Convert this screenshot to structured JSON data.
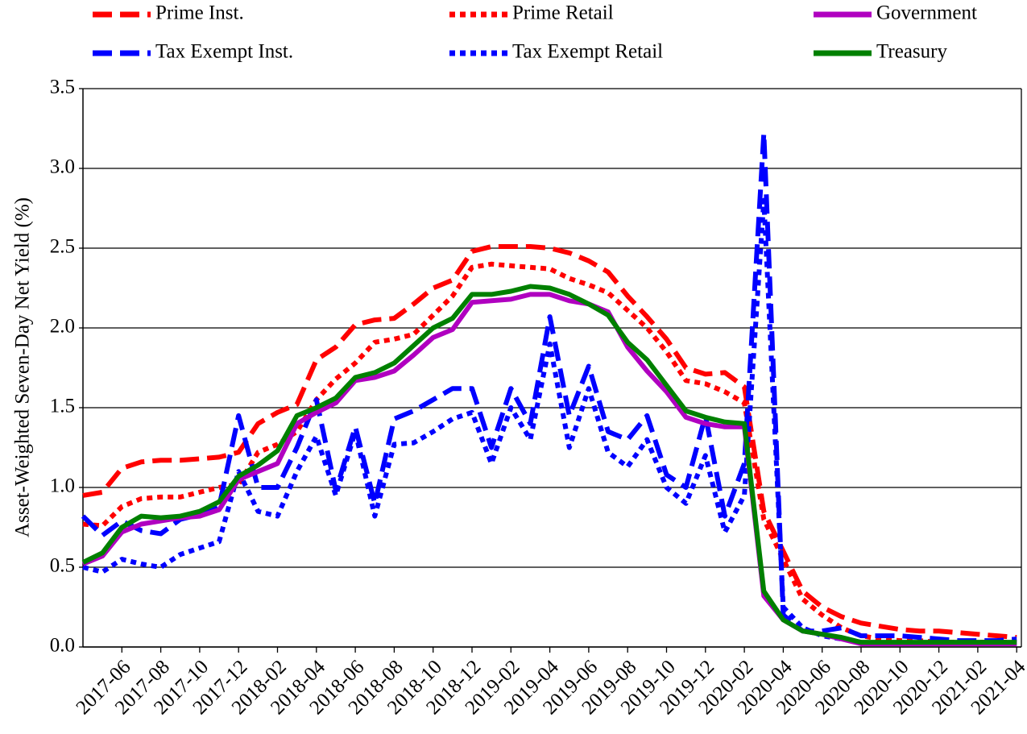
{
  "chart_data": {
    "type": "line",
    "y_label": "Asset-Weighted Seven-Day Net Yield (%)",
    "categories": [
      null,
      null,
      "2017-06",
      null,
      "2017-08",
      null,
      "2017-10",
      null,
      "2017-12",
      null,
      "2018-02",
      null,
      "2018-04",
      null,
      "2018-06",
      null,
      "2018-08",
      null,
      "2018-10",
      null,
      "2018-12",
      null,
      "2019-02",
      null,
      "2019-04",
      null,
      "2019-06",
      null,
      "2019-08",
      null,
      "2019-10",
      null,
      "2019-12",
      null,
      "2020-02",
      null,
      "2020-04",
      null,
      "2020-06",
      null,
      "2020-08",
      null,
      "2020-10",
      null,
      "2020-12",
      null,
      "2021-02",
      null,
      "2021-04"
    ],
    "ylim": [
      0,
      3.5
    ],
    "yticks": [
      {
        "value": 0,
        "label": "0.0"
      },
      0.5,
      {
        "value": 1,
        "label": "1.0"
      },
      1.5,
      {
        "value": 2,
        "label": "2.0"
      },
      2.5,
      {
        "value": 3,
        "label": "3.0"
      },
      3.5
    ],
    "grid": true,
    "series": [
      {
        "name": "Prime Inst.",
        "color": "#ff0000",
        "style": "dashed",
        "values": [
          0.95,
          0.97,
          1.12,
          1.16,
          1.17,
          1.17,
          1.18,
          1.19,
          1.22,
          1.4,
          1.47,
          1.52,
          1.8,
          1.88,
          2.02,
          2.05,
          2.06,
          2.15,
          2.25,
          2.3,
          2.48,
          2.51,
          2.51,
          2.51,
          2.5,
          2.47,
          2.42,
          2.35,
          2.2,
          2.07,
          1.93,
          1.75,
          1.71,
          1.72,
          1.63,
          0.85,
          0.6,
          0.35,
          0.25,
          0.19,
          0.15,
          0.13,
          0.11,
          0.1,
          0.1,
          0.09,
          0.08,
          0.07,
          0.06
        ]
      },
      {
        "name": "Prime Retail",
        "color": "#ff0000",
        "style": "dotted",
        "values": [
          0.77,
          0.76,
          0.88,
          0.93,
          0.94,
          0.94,
          0.97,
          1.0,
          1.02,
          1.22,
          1.27,
          1.35,
          1.55,
          1.68,
          1.78,
          1.91,
          1.93,
          1.96,
          2.08,
          2.2,
          2.38,
          2.4,
          2.39,
          2.38,
          2.37,
          2.31,
          2.27,
          2.22,
          2.11,
          2.0,
          1.85,
          1.67,
          1.65,
          1.6,
          1.53,
          0.8,
          0.55,
          0.3,
          0.2,
          0.12,
          0.07,
          0.05,
          0.04,
          0.04,
          0.03,
          0.03,
          0.03,
          0.03,
          0.03
        ]
      },
      {
        "name": "Government",
        "color": "#b000c0",
        "style": "solid",
        "values": [
          0.52,
          0.57,
          0.72,
          0.77,
          0.79,
          0.81,
          0.82,
          0.86,
          1.05,
          1.1,
          1.15,
          1.4,
          1.47,
          1.53,
          1.67,
          1.69,
          1.73,
          1.83,
          1.94,
          1.99,
          2.16,
          2.17,
          2.18,
          2.21,
          2.21,
          2.17,
          2.15,
          2.1,
          1.88,
          1.73,
          1.6,
          1.44,
          1.4,
          1.38,
          1.38,
          0.32,
          0.17,
          0.1,
          0.08,
          0.05,
          0.02,
          0.02,
          0.02,
          0.02,
          0.02,
          0.02,
          0.02,
          0.02,
          0.02
        ]
      },
      {
        "name": "Tax Exempt Inst.",
        "color": "#0000ff",
        "style": "dashed",
        "values": [
          0.82,
          0.7,
          0.79,
          0.73,
          0.71,
          0.8,
          0.83,
          0.88,
          1.45,
          1.0,
          1.0,
          1.25,
          1.55,
          0.98,
          1.38,
          0.9,
          1.43,
          1.48,
          1.55,
          1.62,
          1.62,
          1.25,
          1.62,
          1.4,
          2.07,
          1.45,
          1.76,
          1.35,
          1.3,
          1.45,
          1.08,
          1.0,
          1.45,
          0.82,
          1.15,
          3.22,
          0.2,
          0.1,
          0.1,
          0.12,
          0.07,
          0.07,
          0.07,
          0.06,
          0.05,
          0.04,
          0.04,
          0.04,
          0.05
        ]
      },
      {
        "name": "Tax Exempt Retail",
        "color": "#0000ff",
        "style": "dotted",
        "values": [
          0.5,
          0.47,
          0.55,
          0.52,
          0.5,
          0.58,
          0.62,
          0.66,
          1.1,
          0.85,
          0.82,
          1.1,
          1.32,
          0.95,
          1.35,
          0.82,
          1.27,
          1.28,
          1.35,
          1.43,
          1.47,
          1.15,
          1.5,
          1.3,
          1.9,
          1.25,
          1.62,
          1.22,
          1.13,
          1.3,
          1.0,
          0.9,
          1.2,
          0.72,
          0.95,
          2.8,
          0.25,
          0.12,
          0.07,
          0.05,
          0.03,
          0.02,
          0.02,
          0.02,
          0.02,
          0.02,
          0.02,
          0.02,
          0.02
        ]
      },
      {
        "name": "Treasury",
        "color": "#008000",
        "style": "solid",
        "values": [
          0.53,
          0.59,
          0.75,
          0.82,
          0.81,
          0.82,
          0.85,
          0.91,
          1.07,
          1.14,
          1.23,
          1.45,
          1.5,
          1.56,
          1.69,
          1.72,
          1.78,
          1.89,
          2.0,
          2.06,
          2.21,
          2.21,
          2.23,
          2.26,
          2.25,
          2.21,
          2.15,
          2.08,
          1.91,
          1.8,
          1.64,
          1.48,
          1.44,
          1.41,
          1.4,
          0.35,
          0.17,
          0.1,
          0.08,
          0.06,
          0.03,
          0.03,
          0.03,
          0.03,
          0.03,
          0.03,
          0.03,
          0.03,
          0.03
        ]
      }
    ]
  }
}
